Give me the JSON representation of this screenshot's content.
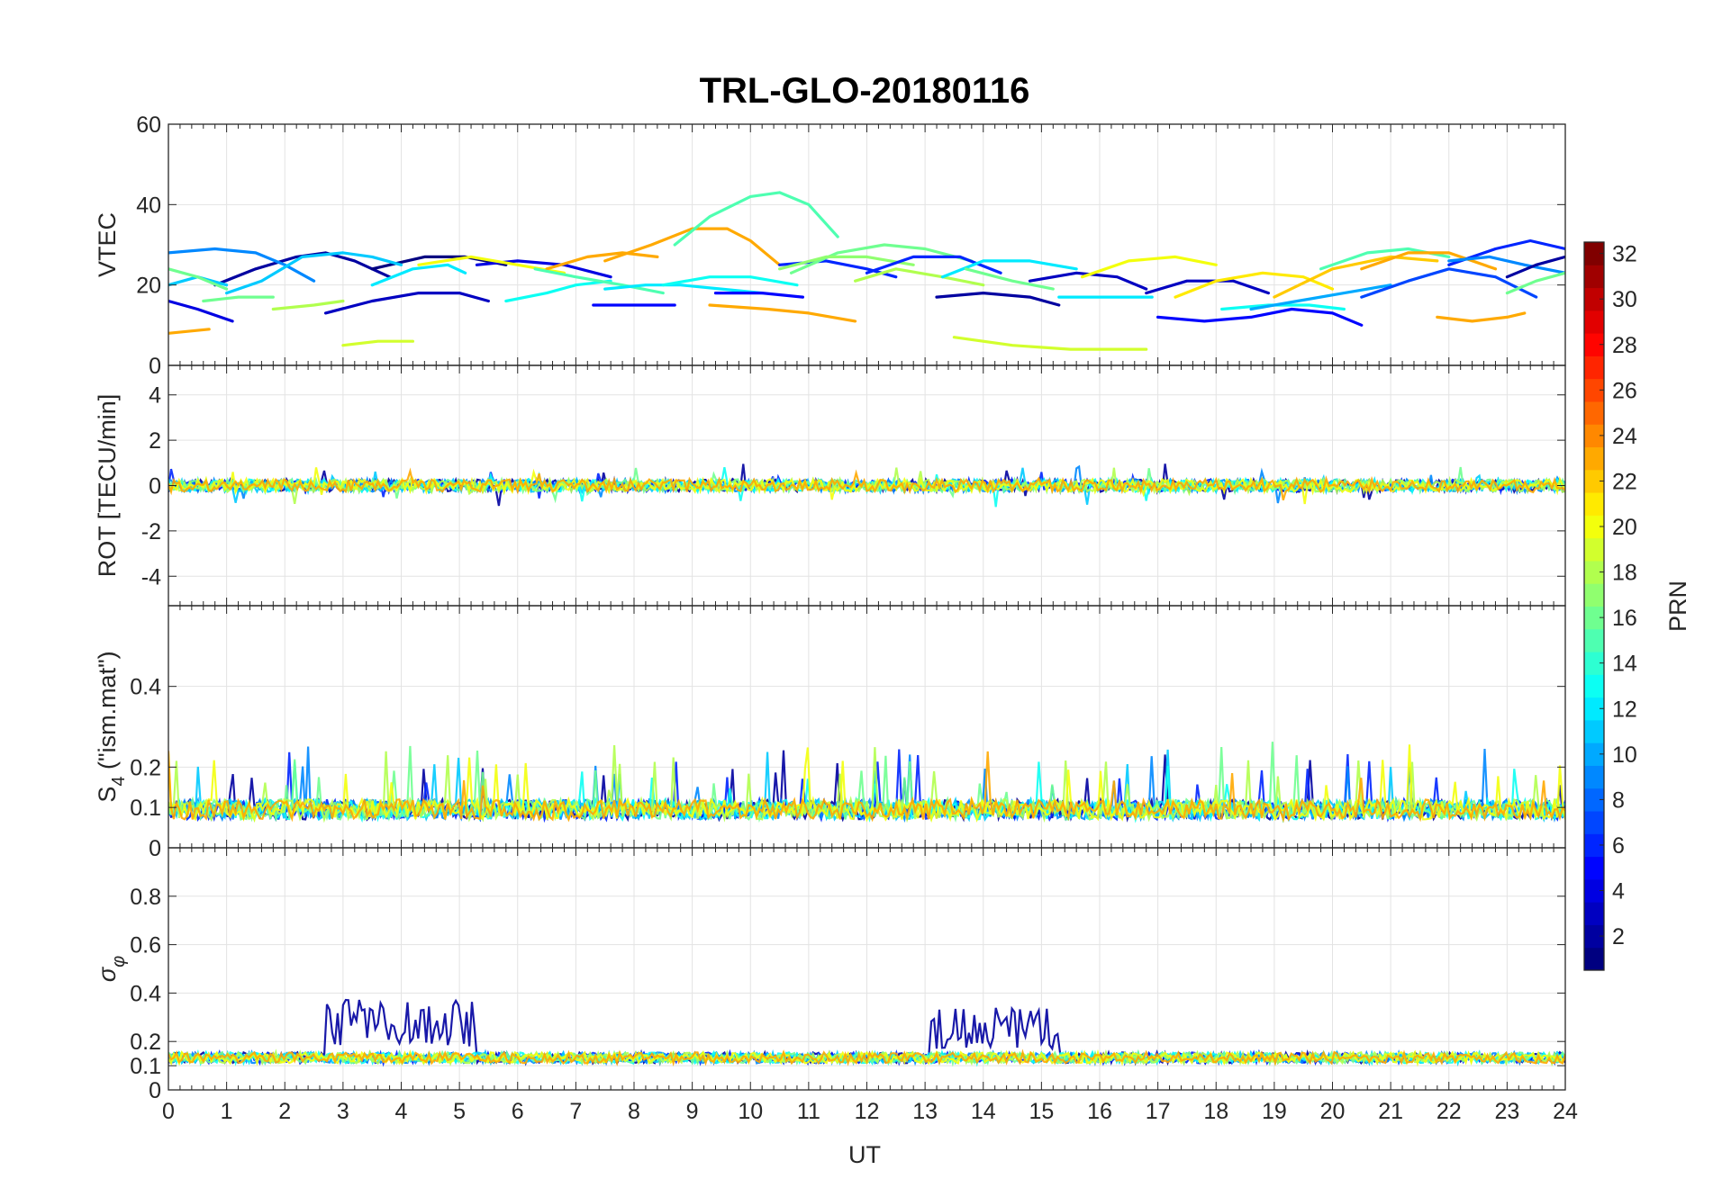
{
  "chart_data": {
    "type": "line",
    "title": "TRL-GLO-20180116",
    "xlabel": "UT",
    "xlim": [
      0,
      24
    ],
    "x_ticks": [
      0,
      1,
      2,
      3,
      4,
      5,
      6,
      7,
      8,
      9,
      10,
      11,
      12,
      13,
      14,
      15,
      16,
      17,
      18,
      19,
      20,
      21,
      22,
      23,
      24
    ],
    "x_tick_labels": [
      "0",
      "1",
      "2",
      "3",
      "4",
      "5",
      "6",
      "7",
      "8",
      "9",
      "10",
      "11",
      "12",
      "13",
      "14",
      "15",
      "16",
      "17",
      "18",
      "19",
      "20",
      "21",
      "22",
      "23",
      "24"
    ],
    "grid": true,
    "colorbar": {
      "label": "PRN",
      "colormap": "jet",
      "range": [
        1,
        32
      ],
      "ticks": [
        2,
        4,
        6,
        8,
        10,
        12,
        14,
        16,
        18,
        20,
        22,
        24,
        26,
        28,
        30,
        32
      ],
      "tick_labels": [
        "2",
        "4",
        "6",
        "8",
        "10",
        "12",
        "14",
        "16",
        "18",
        "20",
        "22",
        "24",
        "26",
        "28",
        "30",
        "32"
      ]
    },
    "panels": [
      {
        "name": "VTEC",
        "ylabel": "VTEC",
        "ylim": [
          0,
          60
        ],
        "y_ticks": [
          0,
          20,
          40,
          60
        ],
        "y_tick_labels": [
          "0",
          "20",
          "40",
          "60"
        ],
        "series": [
          {
            "prn": 2,
            "x": [
              0.8,
              1.5,
              2.2,
              2.7,
              3.2,
              3.8
            ],
            "y": [
              20,
              24,
              27,
              28,
              26,
              22
            ]
          },
          {
            "prn": 3,
            "x": [
              2.7,
              3.5,
              4.3,
              5.0,
              5.5
            ],
            "y": [
              13,
              16,
              18,
              18,
              16
            ]
          },
          {
            "prn": 1,
            "x": [
              3.5,
              4.4,
              5.1,
              5.8
            ],
            "y": [
              24,
              27,
              27,
              25
            ]
          },
          {
            "prn": 4,
            "x": [
              5.3,
              6.0,
              6.8,
              7.6
            ],
            "y": [
              25,
              26,
              25,
              22
            ]
          },
          {
            "prn": 4,
            "x": [
              0.0,
              0.5,
              1.1
            ],
            "y": [
              16,
              14,
              11
            ]
          },
          {
            "prn": 9,
            "x": [
              0.0,
              0.8,
              1.5,
              2.0,
              2.5
            ],
            "y": [
              28,
              29,
              28,
              25,
              21
            ]
          },
          {
            "prn": 11,
            "x": [
              1.0,
              1.6,
              2.3,
              3.0,
              3.5,
              4.0
            ],
            "y": [
              18,
              21,
              27,
              28,
              27,
              25
            ]
          },
          {
            "prn": 11,
            "x": [
              0.0,
              0.5,
              1.0
            ],
            "y": [
              20,
              22,
              20
            ]
          },
          {
            "prn": 16,
            "x": [
              0.0,
              0.5,
              1.0
            ],
            "y": [
              24,
              22,
              19
            ]
          },
          {
            "prn": 12,
            "x": [
              3.5,
              4.2,
              4.8,
              5.1
            ],
            "y": [
              20,
              24,
              25,
              23
            ]
          },
          {
            "prn": 16,
            "x": [
              0.6,
              1.2,
              1.8
            ],
            "y": [
              16,
              17,
              17
            ]
          },
          {
            "prn": 18,
            "x": [
              1.8,
              2.5,
              3.0
            ],
            "y": [
              14,
              15,
              16
            ]
          },
          {
            "prn": 19,
            "x": [
              3.0,
              3.6,
              4.2
            ],
            "y": [
              5,
              6,
              6
            ]
          },
          {
            "prn": 20,
            "x": [
              4.3,
              5.2,
              6.0,
              6.8
            ],
            "y": [
              25,
              27,
              25,
              23
            ]
          },
          {
            "prn": 23,
            "x": [
              6.5,
              7.2,
              7.8,
              8.4
            ],
            "y": [
              24,
              27,
              28,
              27
            ]
          },
          {
            "prn": 23,
            "x": [
              0.0,
              0.7
            ],
            "y": [
              8,
              9
            ]
          },
          {
            "prn": 13,
            "x": [
              5.8,
              6.5,
              7.0,
              7.6
            ],
            "y": [
              16,
              18,
              20,
              21
            ]
          },
          {
            "prn": 15,
            "x": [
              6.3,
              7.0,
              7.8,
              8.5
            ],
            "y": [
              24,
              22,
              20,
              18
            ]
          },
          {
            "prn": 12,
            "x": [
              7.5,
              8.2,
              8.8,
              9.5,
              10.2
            ],
            "y": [
              19,
              20,
              20,
              19,
              18
            ]
          },
          {
            "prn": 5,
            "x": [
              7.3,
              8.0,
              8.7
            ],
            "y": [
              15,
              15,
              15
            ]
          },
          {
            "prn": 23,
            "x": [
              7.5,
              8.3,
              9.0,
              9.6,
              10.0,
              10.5
            ],
            "y": [
              26,
              30,
              34,
              34,
              31,
              25
            ]
          },
          {
            "prn": 15,
            "x": [
              8.7,
              9.3,
              10.0,
              10.5,
              11.0,
              11.5
            ],
            "y": [
              30,
              37,
              42,
              43,
              40,
              32
            ]
          },
          {
            "prn": 13,
            "x": [
              8.5,
              9.3,
              10.0,
              10.8
            ],
            "y": [
              20,
              22,
              22,
              20
            ]
          },
          {
            "prn": 5,
            "x": [
              9.4,
              10.2,
              10.9
            ],
            "y": [
              18,
              18,
              17
            ]
          },
          {
            "prn": 23,
            "x": [
              9.3,
              10.3,
              11.0,
              11.8
            ],
            "y": [
              15,
              14,
              13,
              11
            ]
          },
          {
            "prn": 6,
            "x": [
              10.5,
              11.3,
              12.0,
              12.5
            ],
            "y": [
              25,
              26,
              24,
              22
            ]
          },
          {
            "prn": 16,
            "x": [
              10.7,
              11.5,
              12.3,
              13.0,
              13.8
            ],
            "y": [
              23,
              28,
              30,
              29,
              26
            ]
          },
          {
            "prn": 17,
            "x": [
              10.5,
              11.3,
              12.0,
              12.8
            ],
            "y": [
              24,
              27,
              27,
              25
            ]
          },
          {
            "prn": 6,
            "x": [
              12.0,
              12.8,
              13.6,
              14.3
            ],
            "y": [
              23,
              27,
              27,
              23
            ]
          },
          {
            "prn": 18,
            "x": [
              11.8,
              12.5,
              13.3,
              14.0
            ],
            "y": [
              21,
              24,
              22,
              20
            ]
          },
          {
            "prn": 2,
            "x": [
              13.2,
              14.0,
              14.8,
              15.3
            ],
            "y": [
              17,
              18,
              17,
              15
            ]
          },
          {
            "prn": 12,
            "x": [
              13.3,
              14.0,
              14.8,
              15.6
            ],
            "y": [
              22,
              26,
              26,
              24
            ]
          },
          {
            "prn": 16,
            "x": [
              13.7,
              14.5,
              15.2
            ],
            "y": [
              24,
              21,
              19
            ]
          },
          {
            "prn": 19,
            "x": [
              13.5,
              14.5,
              15.5,
              16.3,
              16.8
            ],
            "y": [
              7,
              5,
              4,
              4,
              4
            ]
          },
          {
            "prn": 3,
            "x": [
              14.8,
              15.6,
              16.3,
              16.8
            ],
            "y": [
              21,
              23,
              22,
              19
            ]
          },
          {
            "prn": 12,
            "x": [
              15.3,
              16.2,
              16.9
            ],
            "y": [
              17,
              17,
              17
            ]
          },
          {
            "prn": 20,
            "x": [
              15.7,
              16.5,
              17.3,
              18.0
            ],
            "y": [
              22,
              26,
              27,
              25
            ]
          },
          {
            "prn": 3,
            "x": [
              16.8,
              17.5,
              18.3,
              18.9
            ],
            "y": [
              18,
              21,
              21,
              18
            ]
          },
          {
            "prn": 21,
            "x": [
              17.3,
              18.0,
              18.8,
              19.5,
              20.0
            ],
            "y": [
              17,
              21,
              23,
              22,
              19
            ]
          },
          {
            "prn": 5,
            "x": [
              17.0,
              17.8,
              18.6,
              19.3,
              20.0,
              20.5
            ],
            "y": [
              12,
              11,
              12,
              14,
              13,
              10
            ]
          },
          {
            "prn": 13,
            "x": [
              18.1,
              18.9,
              19.6,
              20.2
            ],
            "y": [
              14,
              15,
              15,
              14
            ]
          },
          {
            "prn": 10,
            "x": [
              18.6,
              19.4,
              20.2,
              21.0
            ],
            "y": [
              14,
              16,
              18,
              20
            ]
          },
          {
            "prn": 22,
            "x": [
              19.0,
              20.0,
              21.0,
              21.8
            ],
            "y": [
              17,
              24,
              27,
              26
            ]
          },
          {
            "prn": 15,
            "x": [
              19.8,
              20.6,
              21.3,
              22.0
            ],
            "y": [
              24,
              28,
              29,
              27
            ]
          },
          {
            "prn": 23,
            "x": [
              20.5,
              21.3,
              22.0,
              22.8
            ],
            "y": [
              24,
              28,
              28,
              24
            ]
          },
          {
            "prn": 7,
            "x": [
              20.5,
              21.3,
              22.0,
              22.8,
              23.5
            ],
            "y": [
              17,
              21,
              24,
              22,
              17
            ]
          },
          {
            "prn": 6,
            "x": [
              22.0,
              22.8,
              23.4,
              24.0
            ],
            "y": [
              25,
              29,
              31,
              29
            ]
          },
          {
            "prn": 9,
            "x": [
              22.0,
              22.7,
              23.3,
              24.0
            ],
            "y": [
              26,
              27,
              25,
              23
            ]
          },
          {
            "prn": 2,
            "x": [
              23.0,
              23.5,
              24.0
            ],
            "y": [
              22,
              25,
              27
            ]
          },
          {
            "prn": 16,
            "x": [
              23.0,
              23.5,
              24.0
            ],
            "y": [
              18,
              21,
              23
            ]
          },
          {
            "prn": 23,
            "x": [
              21.8,
              22.4,
              23.0,
              23.3
            ],
            "y": [
              12,
              11,
              12,
              13
            ]
          }
        ]
      },
      {
        "name": "ROT",
        "ylabel": "ROT [TECU/min]",
        "ylim": [
          -5.3,
          5.3
        ],
        "y_ticks": [
          -4,
          -2,
          0,
          2,
          4
        ],
        "y_tick_labels": [
          "-4",
          "-2",
          "0",
          "2",
          "4"
        ],
        "typical_range": [
          -1,
          1
        ],
        "note": "dense per-PRN traces centered on 0, mostly within ±1 TECU/min"
      },
      {
        "name": "S4",
        "ylabel": "S4 (\"ism.mat\")",
        "ylabel_main": "S",
        "ylabel_sub": "4",
        "ylabel_rest": " (\"ism.mat\")",
        "ylim": [
          0,
          0.6
        ],
        "y_ticks": [
          0,
          0.1,
          0.2,
          0.4
        ],
        "y_tick_labels": [
          "0",
          "0.1",
          "0.2",
          "0.4"
        ],
        "typical_range": [
          0.04,
          0.27
        ],
        "note": "dense per-PRN traces, mostly between 0.05 and 0.15 with spikes up to ~0.26"
      },
      {
        "name": "sigma_phi",
        "ylabel": "σ φ",
        "ylabel_main": "σ",
        "ylabel_sub": "φ",
        "ylim": [
          0,
          1
        ],
        "y_ticks": [
          0,
          0.1,
          0.2,
          0.4,
          0.6,
          0.8
        ],
        "y_tick_labels": [
          "0",
          "0.1",
          "0.2",
          "0.4",
          "0.6",
          "0.8"
        ],
        "typical_range": [
          0.1,
          0.2
        ],
        "enhanced_intervals": [
          {
            "prn": 2,
            "x_start": 2.7,
            "x_end": 5.3,
            "peak": 0.38
          },
          {
            "prn": 2,
            "x_start": 13.1,
            "x_end": 15.3,
            "peak": 0.34
          }
        ],
        "note": "baseline around 0.1-0.2 for all PRNs; PRN 2 enhanced during the listed intervals"
      }
    ]
  }
}
